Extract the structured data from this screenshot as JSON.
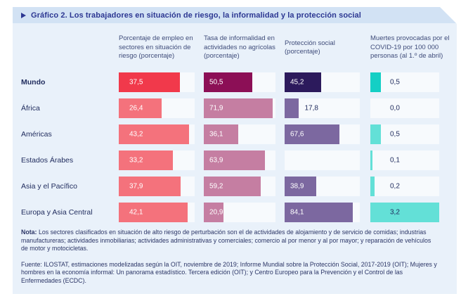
{
  "title": "Gráfico 2. Los trabajadores en situación de riesgo, la informalidad y la protección social",
  "header": {
    "columns": [
      {
        "label": "Porcentaje de empleo en sectores en situación de riesgo (porcentaje)"
      },
      {
        "label": "Tasa de informalidad en actividades no agrícolas (porcentaje)"
      },
      {
        "label": "Protección social (porcentaje)"
      },
      {
        "label": "Muertes provocadas por el COVID-19 por 100 000 personas (al 1.º de abril)"
      }
    ]
  },
  "chart_data": {
    "type": "bar",
    "orientation": "horizontal",
    "title": "Gráfico 2. Los trabajadores en situación de riesgo, la informalidad y la protección social",
    "categories": [
      "Mundo",
      "África",
      "Américas",
      "Estados Árabes",
      "Asia y el Pacífico",
      "Europa y Asia Central"
    ],
    "bold_category": "Mundo",
    "value_labels": true,
    "decimal_separator": ",",
    "series": [
      {
        "name": "Porcentaje de empleo en sectores en situación de riesgo (porcentaje)",
        "values": [
          37.5,
          26.4,
          43.2,
          33.2,
          37.9,
          42.1
        ],
        "xlim": [
          0,
          46.5
        ]
      },
      {
        "name": "Tasa de informalidad en actividades no agrícolas (porcentaje)",
        "values": [
          50.5,
          71.9,
          36.1,
          63.9,
          59.2,
          20.9
        ],
        "xlim": [
          0,
          75
        ]
      },
      {
        "name": "Protección social (porcentaje)",
        "values": [
          45.2,
          17.8,
          67.6,
          null,
          38.9,
          84.1
        ],
        "xlim": [
          0,
          93
        ]
      },
      {
        "name": "Muertes provocadas por el COVID-19 por 100 000 personas (al 1.º de abril)",
        "values": [
          0.5,
          0.0,
          0.5,
          0.1,
          0.2,
          3.2
        ],
        "xlim": [
          0,
          3.2
        ]
      }
    ]
  },
  "colors": {
    "panel_bg": "#e9f1fa",
    "title_band_bg": "#d2e2f4",
    "title_text": "#2c3792",
    "track_bg": "#f7fafd",
    "value_text_light": "#ffffff",
    "value_text_dark": "#1e2a5c",
    "bars": [
      {
        "normal": "#f4727c",
        "mundo": "#f1394b"
      },
      {
        "normal": "#c57ea2",
        "mundo": "#8c0f56"
      },
      {
        "normal": "#7c68a0",
        "mundo": "#2c1a5c"
      },
      {
        "normal": "#63e0d7",
        "mundo": "#14cfc5"
      }
    ]
  },
  "note": {
    "prefix": "Nota:",
    "body": "Los sectores clasificados en situación de alto riesgo de perturbación son el de actividades de alojamiento y de servicio de comidas; industrias manufactureras; actividades inmobiliarias; actividades administrativas y comerciales; comercio al por menor y al por mayor; y reparación de vehículos de motor y motocicletas."
  },
  "source": {
    "text": "Fuente: ILOSTAT, estimaciones modelizadas según la OIT, noviembre de 2019; Informe Mundial sobre la Protección Social, 2017-2019 (OIT); Mujeres y hombres en la economía informal: Un panorama estadístico. Tercera edición (OIT); y Centro Europeo para la Prevención y el Control de las Enfermedades (ECDC)."
  }
}
